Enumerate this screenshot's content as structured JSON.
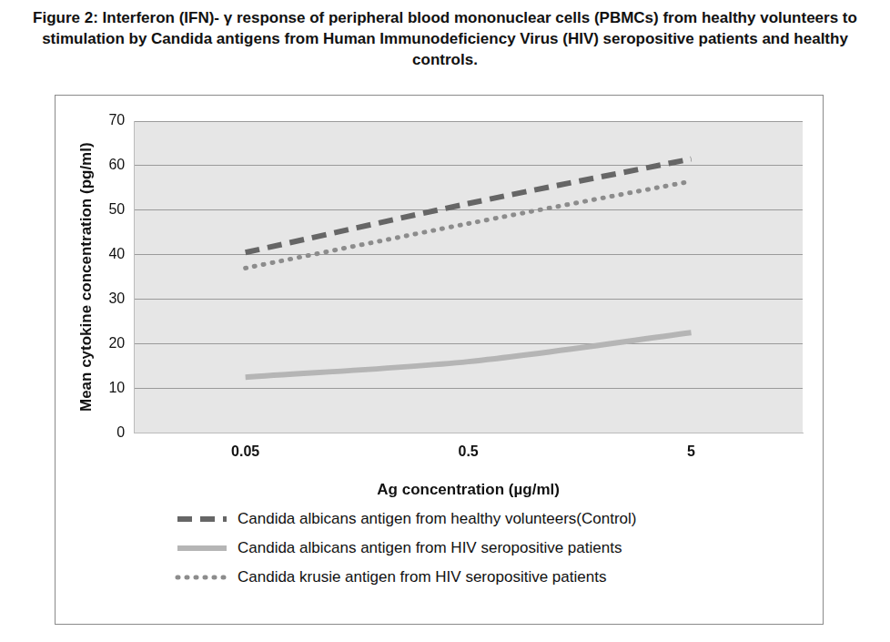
{
  "chart_data": {
    "type": "line",
    "title": "Figure 2: Interferon (IFN)- γ response of peripheral blood mononuclear cells (PBMCs) from healthy volunteers to stimulation by Candida antigens from Human Immunodeficiency Virus (HIV) seropositive patients and healthy controls.",
    "x_label": "Ag concentration (µg/ml)",
    "y_label": "Mean cytokine concentration (pg/ml)",
    "categories": [
      "0.05",
      "0.5",
      "5"
    ],
    "series": [
      {
        "name": "Candida albicans antigen from healthy volunteers(Control)",
        "color": "#666666",
        "line_style": "dashed",
        "values": [
          40.5,
          51.5,
          61.5
        ]
      },
      {
        "name": "Candida albicans antigen from HIV seropositive patients",
        "color": "#b5b5b5",
        "line_style": "solid",
        "values": [
          12.5,
          16,
          22.5
        ]
      },
      {
        "name": "Candida krusie antigen from HIV seropositive patients",
        "color": "#8c8c8c",
        "line_style": "dotted",
        "values": [
          37,
          47,
          56.5
        ]
      }
    ],
    "ylim": [
      0,
      70
    ],
    "yticks": [
      0,
      10,
      20,
      30,
      40,
      50,
      60,
      70
    ],
    "grid": true,
    "legend": "bottom"
  }
}
